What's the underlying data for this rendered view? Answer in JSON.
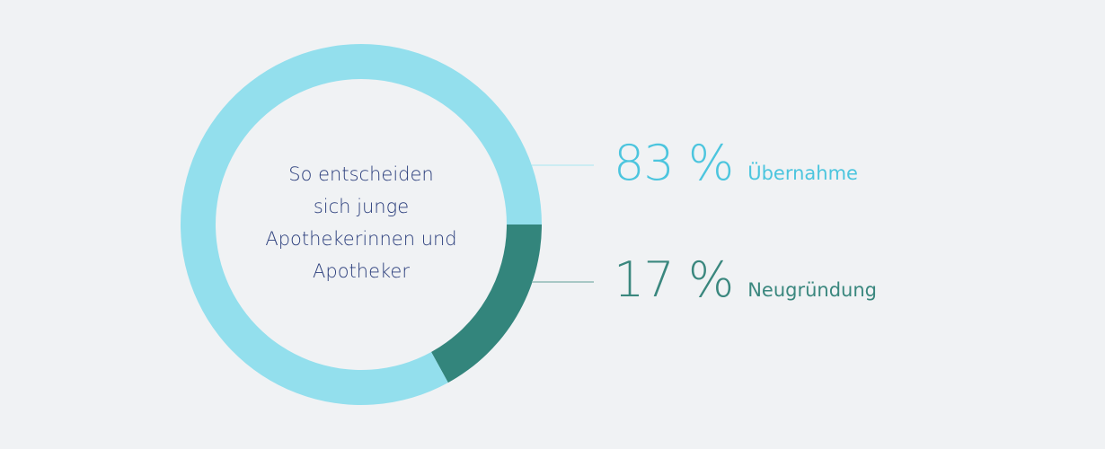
{
  "chart_data": {
    "type": "pie",
    "donut": true,
    "title": "So entscheiden sich junge Apothekerinnen und Apotheker",
    "title_lines": [
      "So entscheiden",
      "sich junge",
      "Apothekerinnen und",
      "Apotheker"
    ],
    "series": [
      {
        "name": "Übernahme",
        "value": 83,
        "label": "83 %",
        "color": "#93dfed",
        "text_color": "#4cc5de"
      },
      {
        "name": "Neugründung",
        "value": 17,
        "label": "17 %",
        "color": "#33857c",
        "text_color": "#3a877e"
      }
    ],
    "legend_position": "right"
  }
}
